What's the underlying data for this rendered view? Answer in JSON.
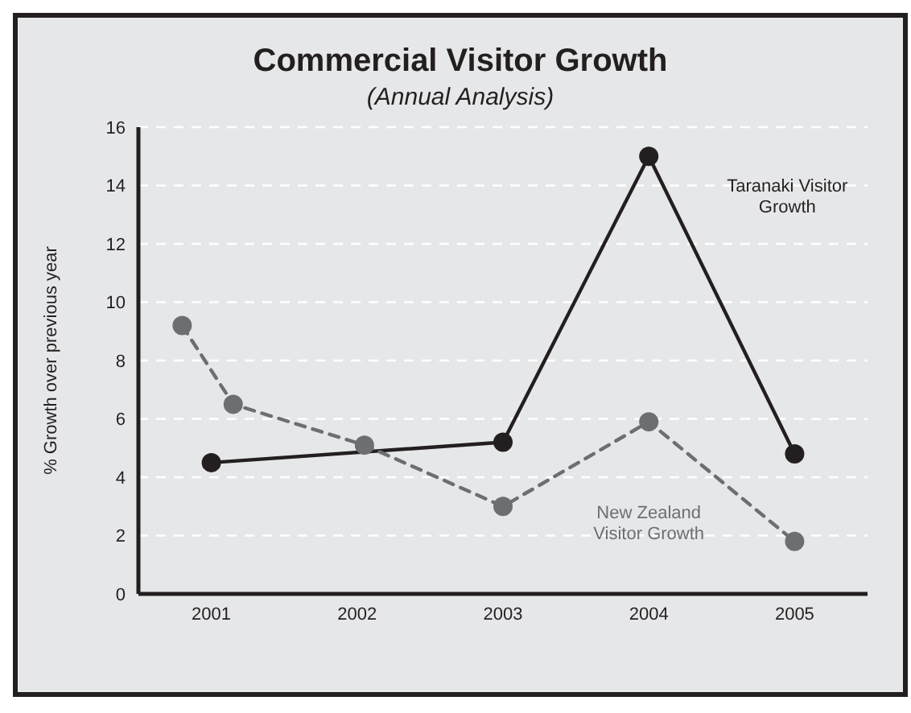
{
  "chart_data": {
    "type": "line",
    "title": "Commercial Visitor Growth",
    "subtitle": "(Annual Analysis)",
    "ylabel": "% Growth over previous year",
    "xlim": [
      2000.5,
      2005.5
    ],
    "xticks": [
      2001,
      2002,
      2003,
      2004,
      2005
    ],
    "ylim": [
      0,
      16
    ],
    "yticks": [
      0,
      2,
      4,
      6,
      8,
      10,
      12,
      14,
      16
    ],
    "grid": "y",
    "marker": "circle",
    "series": [
      {
        "name": "Taranaki Visitor Growth",
        "color": "#231f20",
        "line_style": "solid",
        "x": [
          2001,
          2002.05,
          2003,
          2004,
          2005
        ],
        "values": [
          4.5,
          null,
          5.2,
          15.0,
          4.8
        ]
      },
      {
        "name": "New Zealand Visitor Growth",
        "color": "#6d6e71",
        "line_style": "dashed",
        "x": [
          2000.8,
          2001.15,
          2002.05,
          2003,
          2004,
          2005
        ],
        "values": [
          9.2,
          6.5,
          5.1,
          3.0,
          5.9,
          1.8
        ]
      }
    ]
  }
}
